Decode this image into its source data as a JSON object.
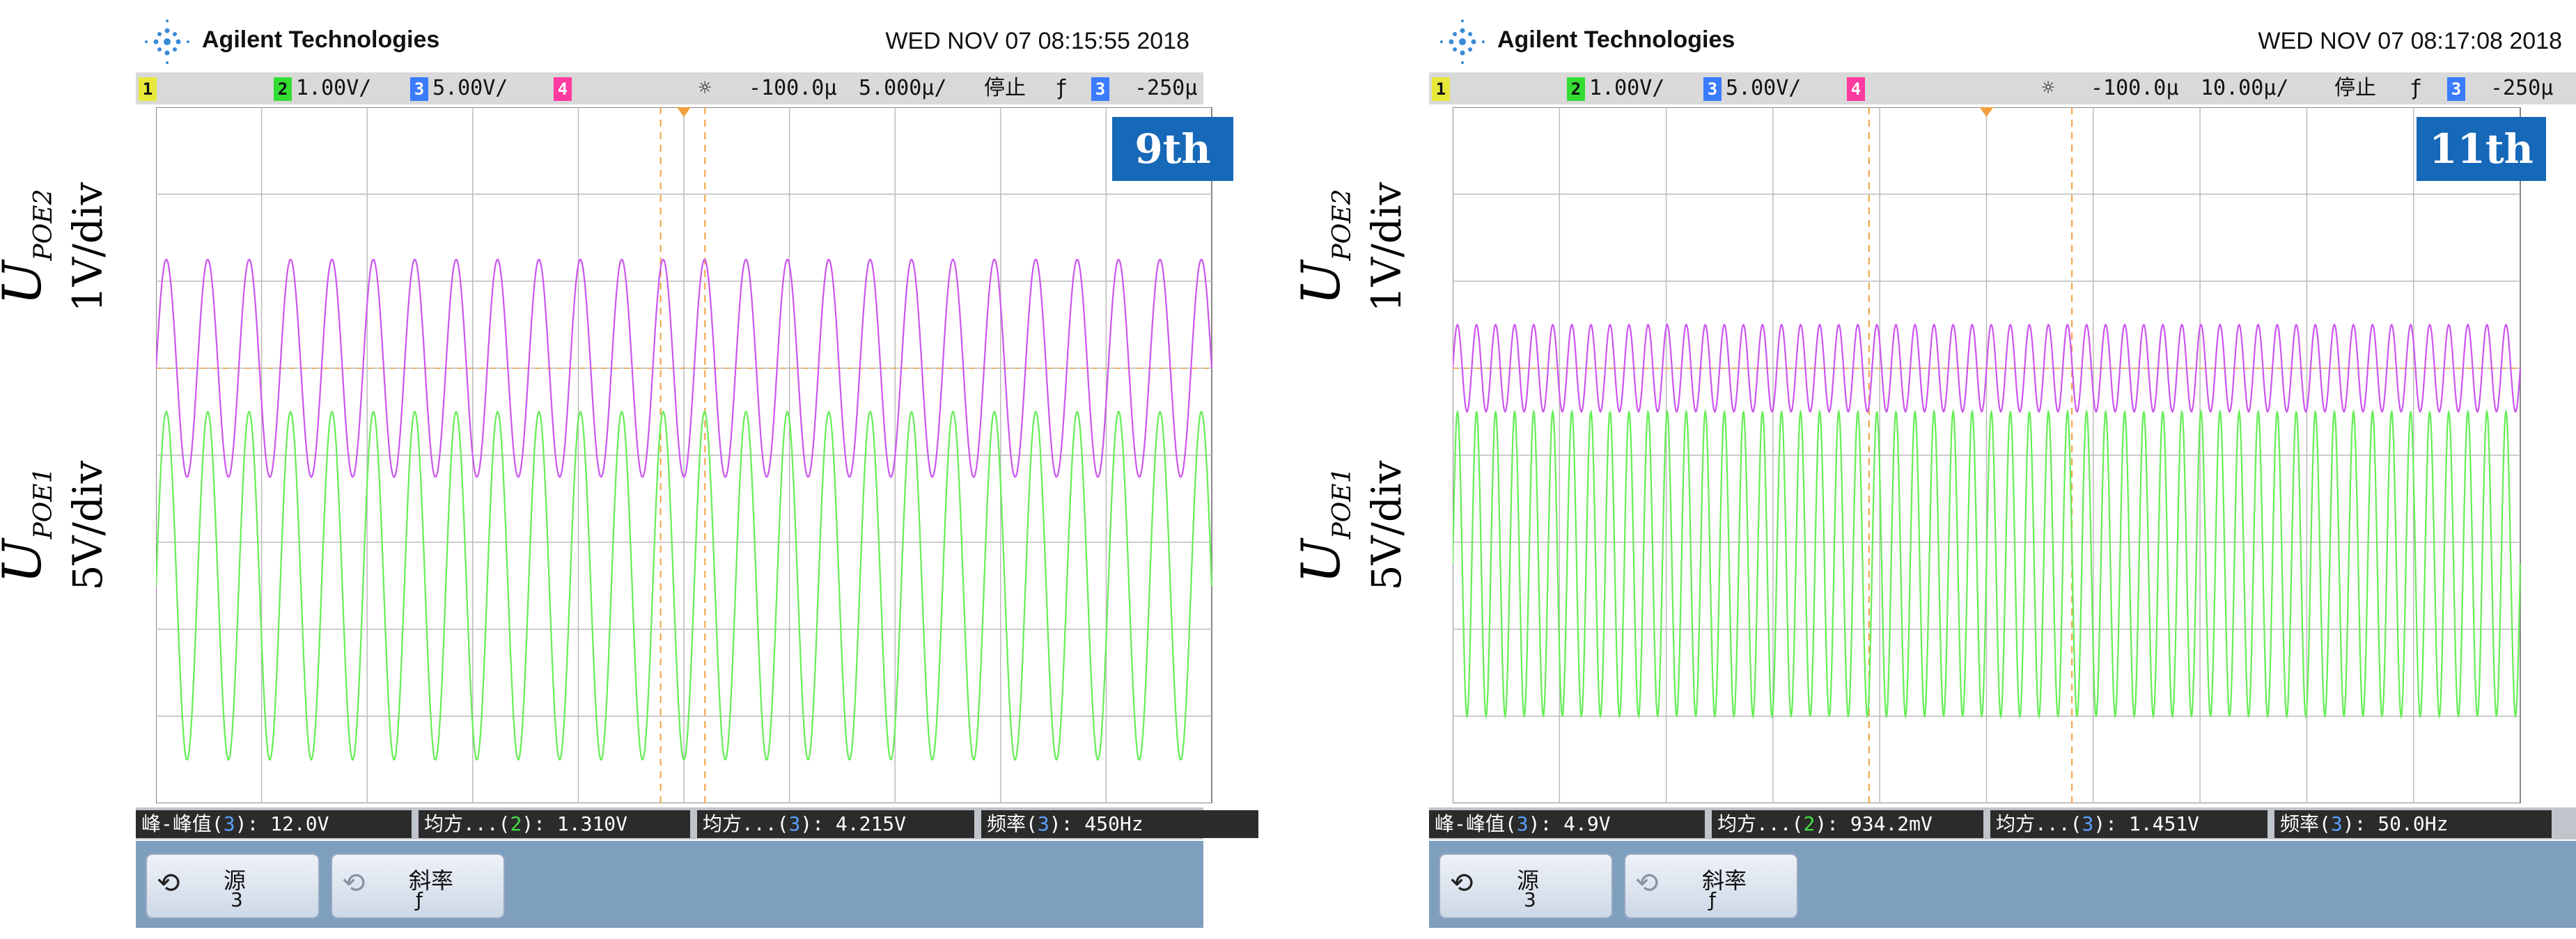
{
  "panels": [
    {
      "brand": "Agilent Technologies",
      "datetime": "WED NOV 07 08:15:55 2018",
      "status": {
        "ch1": "1",
        "ch2": "2",
        "ch2_scale": "1.00V/",
        "ch3": "3",
        "ch3_scale": "5.00V/",
        "ch4": "4",
        "time_offset": "-100.0µ",
        "time_scale": "5.000µ/",
        "run_state": "停止",
        "trigger_edge": "ƒ",
        "trig_ch": "3",
        "trig_level": "-250µ"
      },
      "harmonic_badge": "9th",
      "labels": {
        "upper_symbol": "U",
        "upper_sub": "POE2",
        "upper_scale": "1V/div",
        "lower_symbol": "U",
        "lower_sub": "POE1",
        "lower_scale": "5V/div"
      },
      "waves": {
        "purple": {
          "amplitude_div": 1.25,
          "center_div": 3.0,
          "cycles": 25.5,
          "color": "#cc55ee"
        },
        "green": {
          "amplitude_div": 2.0,
          "center_div": 5.5,
          "cycles": 25.5,
          "color": "#66ee55"
        }
      },
      "measurements": [
        {
          "name": "峰-峰值",
          "ch": "3",
          "value": ": 12.0V"
        },
        {
          "name": "均方...",
          "ch": "2",
          "value": ": 1.310V"
        },
        {
          "name": "均方...",
          "ch": "3",
          "value": ": 4.215V"
        },
        {
          "name": "频率",
          "ch": "3",
          "value": ": 450Hz"
        }
      ],
      "softkeys": [
        {
          "label": "源",
          "value": "3"
        },
        {
          "label": "斜率",
          "value": "ƒ"
        }
      ]
    },
    {
      "brand": "Agilent Technologies",
      "datetime": "WED NOV 07 08:17:08 2018",
      "status": {
        "ch1": "1",
        "ch2": "2",
        "ch2_scale": "1.00V/",
        "ch3": "3",
        "ch3_scale": "5.00V/",
        "ch4": "4",
        "time_offset": "-100.0µ",
        "time_scale": "10.00µ/",
        "run_state": "停止",
        "trigger_edge": "ƒ",
        "trig_ch": "3",
        "trig_level": "-250µ"
      },
      "harmonic_badge": "11th",
      "labels": {
        "upper_symbol": "U",
        "upper_sub": "POE2",
        "upper_scale": "1V/div",
        "lower_symbol": "U",
        "lower_sub": "POE1",
        "lower_scale": "5V/div"
      },
      "waves": {
        "purple": {
          "amplitude_div": 0.5,
          "center_div": 3.0,
          "cycles": 56,
          "color": "#cc55ee"
        },
        "green": {
          "amplitude_div": 1.75,
          "center_div": 5.25,
          "cycles": 56,
          "color": "#66ee55"
        }
      },
      "measurements": [
        {
          "name": "峰-峰值",
          "ch": "3",
          "value": ": 4.9V"
        },
        {
          "name": "均方...",
          "ch": "2",
          "value": ": 934.2mV"
        },
        {
          "name": "均方...",
          "ch": "3",
          "value": ": 1.451V"
        },
        {
          "name": "频率",
          "ch": "3",
          "value": ": 50.0Hz"
        }
      ],
      "softkeys": [
        {
          "label": "源",
          "value": "3"
        },
        {
          "label": "斜率",
          "value": "ƒ"
        }
      ]
    }
  ],
  "colors": {
    "ch1": "#e8e83a",
    "ch2": "#33dd33",
    "ch3": "#3a7bff",
    "ch4": "#ff3aa0",
    "purple": "#cc55ee",
    "green": "#66ee55",
    "badge": "#1668b8",
    "cursor": "#f0a040"
  }
}
